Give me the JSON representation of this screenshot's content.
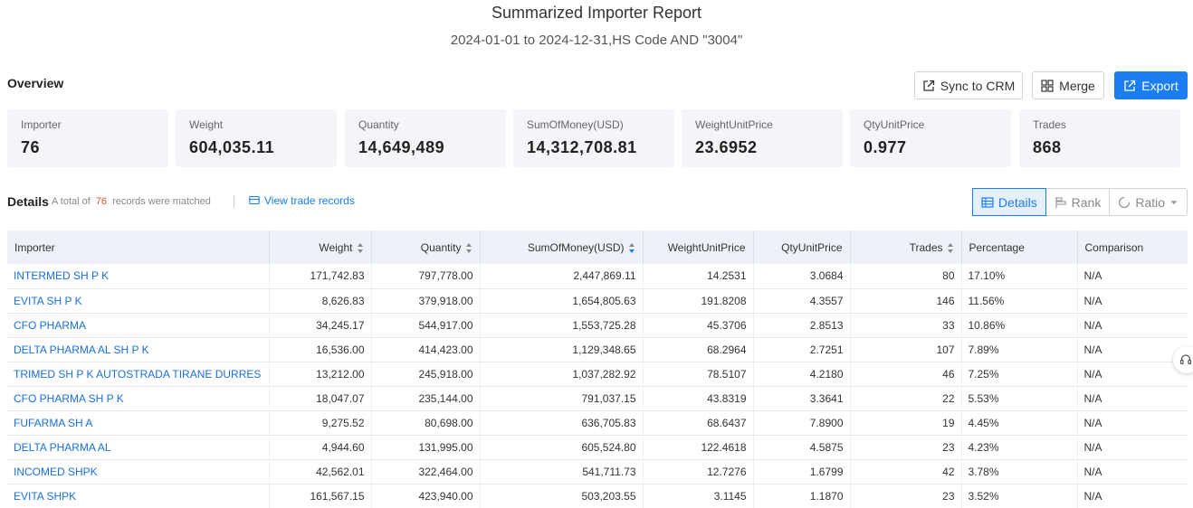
{
  "report": {
    "title": "Summarized Importer Report",
    "subtitle": "2024-01-01 to 2024-12-31,HS Code AND \"3004\""
  },
  "overview": {
    "label": "Overview",
    "sync_label": "Sync to CRM",
    "merge_label": "Merge",
    "export_label": "Export",
    "stats": [
      {
        "label": "Importer",
        "value": "76"
      },
      {
        "label": "Weight",
        "value": "604,035.11"
      },
      {
        "label": "Quantity",
        "value": "14,649,489"
      },
      {
        "label": "SumOfMoney(USD)",
        "value": "14,312,708.81"
      },
      {
        "label": "WeightUnitPrice",
        "value": "23.6952"
      },
      {
        "label": "QtyUnitPrice",
        "value": "0.977"
      },
      {
        "label": "Trades",
        "value": "868"
      }
    ]
  },
  "details": {
    "label": "Details",
    "total_prefix": "A total of",
    "total_count": "76",
    "total_suffix": "records were matched",
    "view_trade_label": "View trade records",
    "views": {
      "details": "Details",
      "rank": "Rank",
      "ratio": "Ratio"
    }
  },
  "table": {
    "headers": [
      "Importer",
      "Weight",
      "Quantity",
      "SumOfMoney(USD)",
      "WeightUnitPrice",
      "QtyUnitPrice",
      "Trades",
      "Percentage",
      "Comparison"
    ],
    "rows": [
      [
        "INTERMED SH P K",
        "171,742.83",
        "797,778.00",
        "2,447,869.11",
        "14.2531",
        "3.0684",
        "80",
        "17.10%",
        "N/A"
      ],
      [
        "EVITA SH P K",
        "8,626.83",
        "379,918.00",
        "1,654,805.63",
        "191.8208",
        "4.3557",
        "146",
        "11.56%",
        "N/A"
      ],
      [
        "CFO PHARMA",
        "34,245.17",
        "544,917.00",
        "1,553,725.28",
        "45.3706",
        "2.8513",
        "33",
        "10.86%",
        "N/A"
      ],
      [
        "DELTA PHARMA AL SH P K",
        "16,536.00",
        "414,423.00",
        "1,129,348.65",
        "68.2964",
        "2.7251",
        "107",
        "7.89%",
        "N/A"
      ],
      [
        "TRIMED SH P K AUTOSTRADA TIRANE DURRES",
        "13,212.00",
        "245,918.00",
        "1,037,282.92",
        "78.5107",
        "4.2180",
        "46",
        "7.25%",
        "N/A"
      ],
      [
        "CFO PHARMA SH P K",
        "18,047.07",
        "235,144.00",
        "791,037.15",
        "43.8319",
        "3.3641",
        "22",
        "5.53%",
        "N/A"
      ],
      [
        "FUFARMA SH A",
        "9,275.52",
        "80,698.00",
        "636,705.83",
        "68.6437",
        "7.8900",
        "19",
        "4.45%",
        "N/A"
      ],
      [
        "DELTA PHARMA AL",
        "4,944.60",
        "131,995.00",
        "605,524.80",
        "122.4618",
        "4.5875",
        "23",
        "4.23%",
        "N/A"
      ],
      [
        "INCOMED SHPK",
        "42,562.01",
        "322,464.00",
        "541,711.73",
        "12.7276",
        "1.6799",
        "42",
        "3.78%",
        "N/A"
      ],
      [
        "EVITA SHPK",
        "161,567.15",
        "423,940.00",
        "503,203.55",
        "3.1145",
        "1.1870",
        "23",
        "3.52%",
        "N/A"
      ]
    ]
  }
}
